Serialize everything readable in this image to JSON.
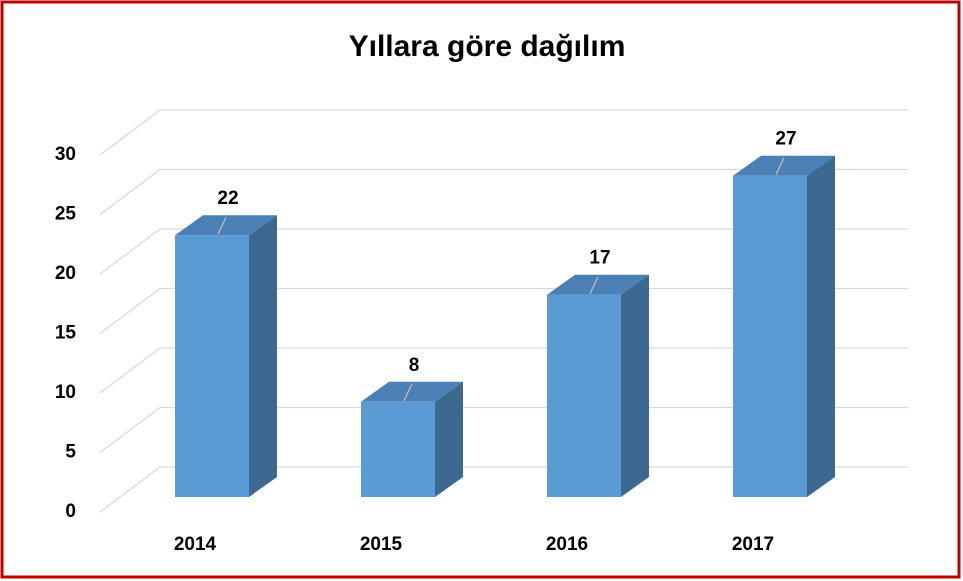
{
  "chart_data": {
    "type": "bar3d",
    "title": "Yıllara göre dağılım",
    "categories": [
      "2014",
      "2015",
      "2016",
      "2017"
    ],
    "values": [
      22,
      8,
      17,
      27
    ],
    "color": "#5b9bd5",
    "side_color": "#3d6890",
    "top_color": "#4a80b5",
    "ylim": [
      0,
      30
    ],
    "yticks": [
      0,
      5,
      10,
      15,
      20,
      25,
      30
    ],
    "grid": true
  }
}
